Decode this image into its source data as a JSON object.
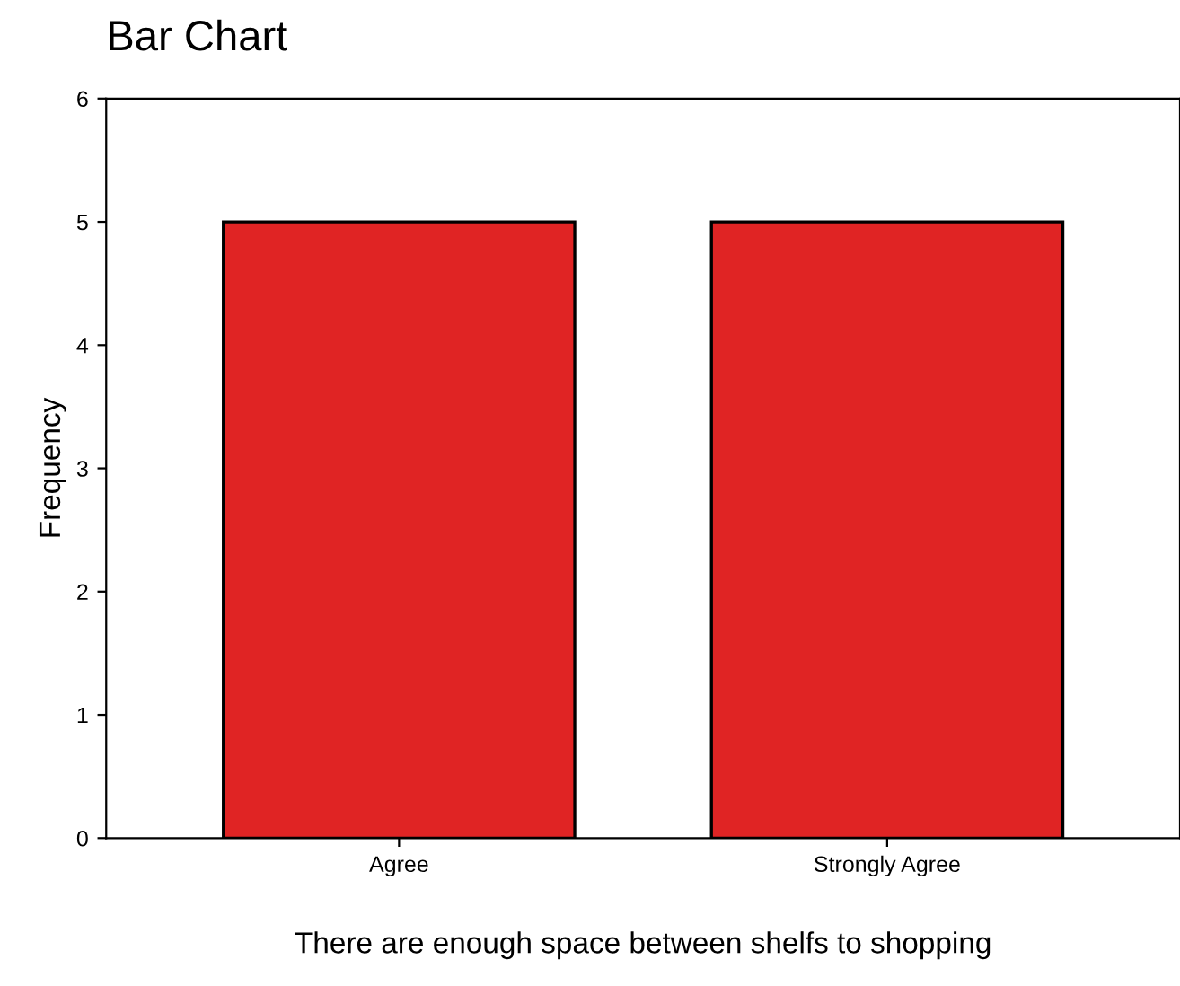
{
  "chart_data": {
    "type": "bar",
    "title": "Bar Chart",
    "categories": [
      "Agree",
      "Strongly Agree"
    ],
    "values": [
      5,
      5
    ],
    "color": "#e02424",
    "xlabel": "There are enough space between shelfs to shopping",
    "ylabel": "Frequency",
    "ylim": [
      0,
      6
    ],
    "yticks": [
      0,
      1,
      2,
      3,
      4,
      5,
      6
    ],
    "grid": false
  }
}
